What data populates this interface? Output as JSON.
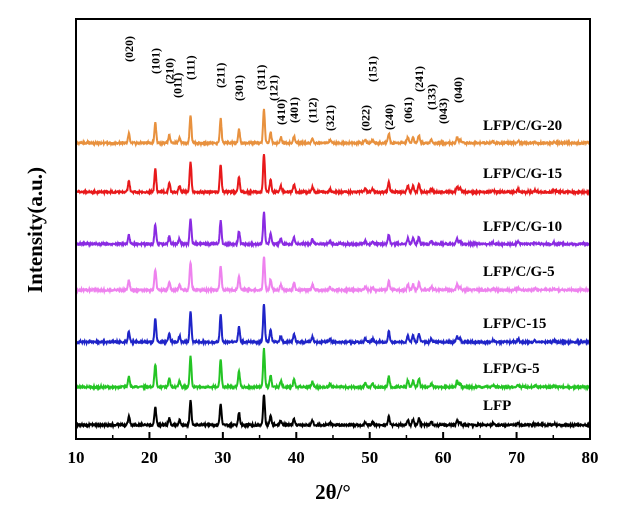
{
  "chart_data": {
    "type": "line",
    "xlabel": "2θ/°",
    "ylabel": "Intensity(a.u.)",
    "xlim": [
      10,
      80
    ],
    "xticks": [
      10,
      20,
      30,
      40,
      50,
      60,
      70,
      80
    ],
    "grid": false,
    "peaks": [
      {
        "x": 17.2,
        "h": 0.35
      },
      {
        "x": 20.8,
        "h": 0.75
      },
      {
        "x": 22.7,
        "h": 0.3
      },
      {
        "x": 24.1,
        "h": 0.2
      },
      {
        "x": 25.6,
        "h": 1.0
      },
      {
        "x": 29.7,
        "h": 0.9
      },
      {
        "x": 32.2,
        "h": 0.5
      },
      {
        "x": 35.6,
        "h": 1.25
      },
      {
        "x": 36.5,
        "h": 0.4
      },
      {
        "x": 37.9,
        "h": 0.2
      },
      {
        "x": 39.7,
        "h": 0.25
      },
      {
        "x": 42.2,
        "h": 0.18
      },
      {
        "x": 44.6,
        "h": 0.1
      },
      {
        "x": 49.4,
        "h": 0.12
      },
      {
        "x": 50.4,
        "h": 0.1
      },
      {
        "x": 52.6,
        "h": 0.35
      },
      {
        "x": 55.2,
        "h": 0.22
      },
      {
        "x": 55.9,
        "h": 0.22
      },
      {
        "x": 56.7,
        "h": 0.28
      },
      {
        "x": 58.4,
        "h": 0.12
      },
      {
        "x": 61.9,
        "h": 0.2
      },
      {
        "x": 62.3,
        "h": 0.12
      },
      {
        "x": 66.8,
        "h": 0.06
      },
      {
        "x": 70.2,
        "h": 0.08
      },
      {
        "x": 72.5,
        "h": 0.06
      },
      {
        "x": 75.1,
        "h": 0.05
      }
    ],
    "series": [
      {
        "name": "LFP/C/G-20",
        "color": "#e8913e",
        "scale": 0.85
      },
      {
        "name": "LFP/C/G-15",
        "color": "#e8191b",
        "scale": 0.95
      },
      {
        "name": "LFP/C/G-10",
        "color": "#8a2be2",
        "scale": 0.8
      },
      {
        "name": "LFP/C/G-5",
        "color": "#ee82ee",
        "scale": 0.85
      },
      {
        "name": "LFP/C-15",
        "color": "#1f24c8",
        "scale": 0.95
      },
      {
        "name": "LFP/G-5",
        "color": "#24c424",
        "scale": 0.95
      },
      {
        "name": "LFP",
        "color": "#000000",
        "scale": 0.75
      }
    ],
    "peak_labels": [
      {
        "text": "(020)",
        "x": 17.2
      },
      {
        "text": "(101)",
        "x": 20.8
      },
      {
        "text": "(210)",
        "x": 22.7
      },
      {
        "text": "(011)",
        "x": 24.1
      },
      {
        "text": "(111)",
        "x": 25.6
      },
      {
        "text": "(211)",
        "x": 29.7
      },
      {
        "text": "(301)",
        "x": 32.2
      },
      {
        "text": "(311)",
        "x": 35.6
      },
      {
        "text": "(121)",
        "x": 36.5
      },
      {
        "text": "(410)",
        "x": 37.9
      },
      {
        "text": "(401)",
        "x": 39.7
      },
      {
        "text": "(112)",
        "x": 42.2
      },
      {
        "text": "(321)",
        "x": 44.6
      },
      {
        "text": "(022)",
        "x": 49.4
      },
      {
        "text": "(151)",
        "x": 50.4
      },
      {
        "text": "(240)",
        "x": 52.6
      },
      {
        "text": "(061)",
        "x": 55.2
      },
      {
        "text": "(241)",
        "x": 56.7
      },
      {
        "text": "(133)",
        "x": 58.4
      },
      {
        "text": "(043)",
        "x": 60.0
      },
      {
        "text": "(040)",
        "x": 62.0
      }
    ]
  }
}
